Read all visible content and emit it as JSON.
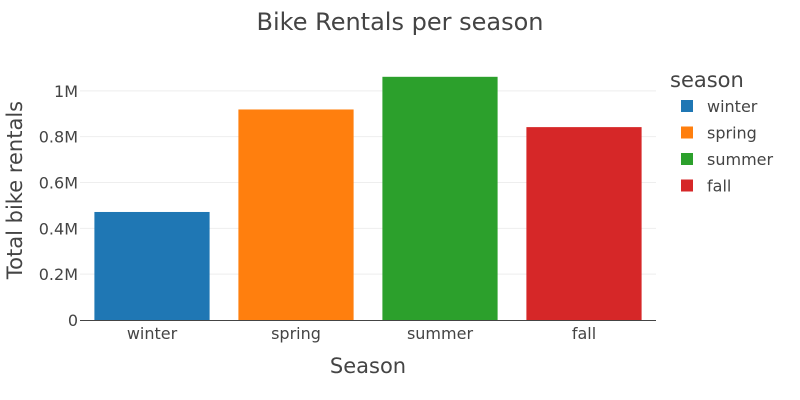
{
  "chart_data": {
    "type": "bar",
    "title": "Bike Rentals per season",
    "xlabel": "Season",
    "ylabel": "Total bike rentals",
    "categories": [
      "winter",
      "spring",
      "summer",
      "fall"
    ],
    "values": [
      471348,
      918589,
      1061129,
      841613
    ],
    "colors": [
      "#1f77b4",
      "#ff7f0e",
      "#2ca02c",
      "#d62728"
    ],
    "ylim": [
      0,
      1117000
    ],
    "yticks": [
      0,
      200000,
      400000,
      600000,
      800000,
      1000000
    ],
    "ytick_labels": [
      "0",
      "0.2M",
      "0.4M",
      "0.6M",
      "0.8M",
      "1M"
    ],
    "grid": true,
    "legend": {
      "title": "season",
      "placement": "right",
      "entries": [
        "winter",
        "spring",
        "summer",
        "fall"
      ]
    }
  }
}
